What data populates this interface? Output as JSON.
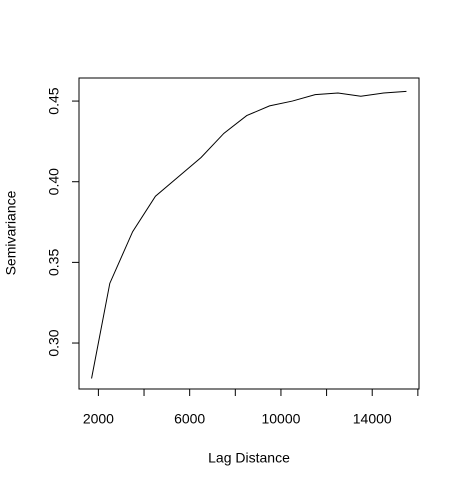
{
  "chart_data": {
    "type": "line",
    "x_label": "Lag Distance",
    "y_label": "Semivariance",
    "x": [
      1700,
      2500,
      3500,
      4500,
      5500,
      6500,
      7500,
      8500,
      9500,
      10500,
      11500,
      12500,
      13500,
      14500,
      15500
    ],
    "series": [
      {
        "color": "#000000",
        "values": [
          0.278,
          0.337,
          0.369,
          0.391,
          0.403,
          0.415,
          0.43,
          0.441,
          0.447,
          0.45,
          0.454,
          0.455,
          0.453,
          0.455,
          0.456
        ]
      }
    ],
    "xlim": [
      1150,
      16050
    ],
    "ylim": [
      0.2715,
      0.4643
    ],
    "xticks": [
      2000,
      6000,
      10000,
      14000
    ],
    "xticks_unlabeled": [
      4000,
      8000,
      12000,
      16000
    ],
    "yticks": [
      {
        "value": 0.3,
        "label": "0.30"
      },
      {
        "value": 0.35,
        "label": "0.35"
      },
      {
        "value": 0.4,
        "label": "0.40"
      },
      {
        "value": 0.45,
        "label": "0.45"
      }
    ]
  }
}
